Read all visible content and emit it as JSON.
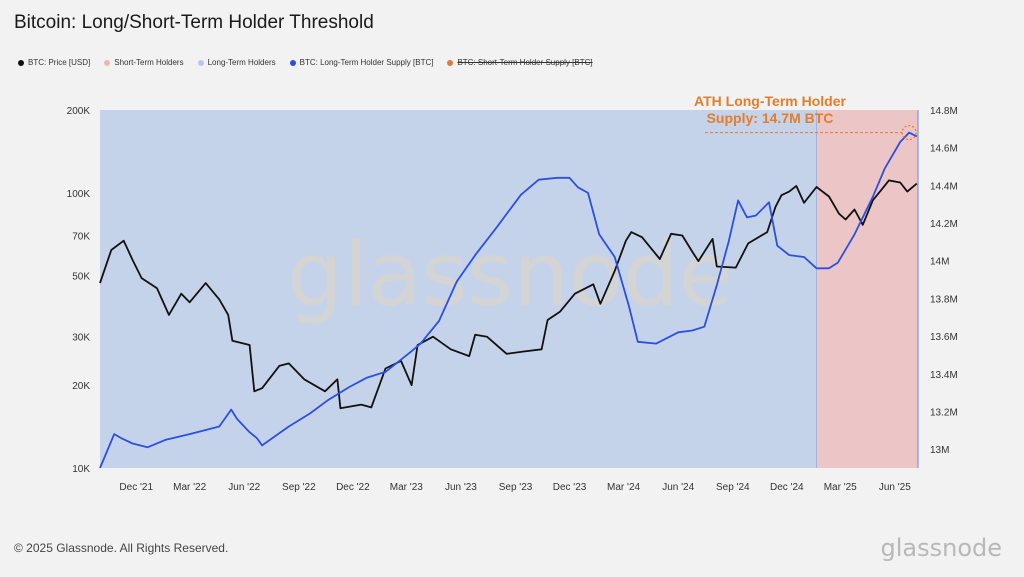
{
  "title": "Bitcoin: Long/Short-Term Holder Threshold",
  "legend": [
    {
      "label": "BTC: Price [USD]",
      "color": "#111111",
      "struck": false
    },
    {
      "label": "Short-Term Holders",
      "color": "#f0b6b6",
      "struck": false
    },
    {
      "label": "Long-Term Holders",
      "color": "#b7c9e8",
      "struck": false
    },
    {
      "label": "BTC: Long-Term Holder Supply [BTC]",
      "color": "#2b4fe0",
      "struck": false
    },
    {
      "label": "BTC: Short-Term Holder Supply [BTC]",
      "color": "#e07a3a",
      "struck": true
    }
  ],
  "annotation": {
    "line1": "ATH Long-Term Holder",
    "line2": "Supply: 14.7M BTC"
  },
  "watermark": "glassnode",
  "footer": "© 2025 Glassnode. All Rights Reserved.",
  "brand": "glassnode",
  "colors": {
    "price": "#111111",
    "lth_supply": "#2b4fe0",
    "lth_area": "#c5d3ea",
    "sth_area": "#ecc6c6",
    "annotation": "#e57c2a"
  },
  "chart_data": {
    "type": "line",
    "y_left_scale": "log",
    "y_left_lim": [
      10000,
      200000
    ],
    "y_left_ticks": [
      10000,
      20000,
      30000,
      50000,
      70000,
      100000,
      200000
    ],
    "y_left_tick_labels": [
      "10K",
      "20K",
      "30K",
      "50K",
      "70K",
      "100K",
      "200K"
    ],
    "y_right_lim": [
      12.9,
      14.8
    ],
    "y_right_ticks": [
      13.0,
      13.2,
      13.4,
      13.6,
      13.8,
      14.0,
      14.2,
      14.4,
      14.6,
      14.8
    ],
    "y_right_tick_labels": [
      "13M",
      "13.2M",
      "13.4M",
      "13.6M",
      "13.8M",
      "14M",
      "14.2M",
      "14.4M",
      "14.6M",
      "14.8M"
    ],
    "x_range": [
      "2021-10-01",
      "2025-07-10"
    ],
    "x_ticks": [
      {
        "date": "2021-12-01",
        "label": "Dec '21"
      },
      {
        "date": "2022-03-01",
        "label": "Mar '22"
      },
      {
        "date": "2022-06-01",
        "label": "Jun '22"
      },
      {
        "date": "2022-09-01",
        "label": "Sep '22"
      },
      {
        "date": "2022-12-01",
        "label": "Dec '22"
      },
      {
        "date": "2023-03-01",
        "label": "Mar '23"
      },
      {
        "date": "2023-06-01",
        "label": "Jun '23"
      },
      {
        "date": "2023-09-01",
        "label": "Sep '23"
      },
      {
        "date": "2023-12-01",
        "label": "Dec '23"
      },
      {
        "date": "2024-03-01",
        "label": "Mar '24"
      },
      {
        "date": "2024-06-01",
        "label": "Jun '24"
      },
      {
        "date": "2024-09-01",
        "label": "Sep '24"
      },
      {
        "date": "2024-12-01",
        "label": "Dec '24"
      },
      {
        "date": "2025-03-01",
        "label": "Mar '25"
      },
      {
        "date": "2025-06-01",
        "label": "Jun '25"
      }
    ],
    "regime_change_date": "2025-01-20",
    "series": [
      {
        "name": "BTC: Price [USD]",
        "axis": "left",
        "points": [
          [
            "2021-10-01",
            47000
          ],
          [
            "2021-10-20",
            62000
          ],
          [
            "2021-11-10",
            67000
          ],
          [
            "2021-11-25",
            57000
          ],
          [
            "2021-12-10",
            49000
          ],
          [
            "2022-01-05",
            45000
          ],
          [
            "2022-01-25",
            36000
          ],
          [
            "2022-02-15",
            43000
          ],
          [
            "2022-03-01",
            40000
          ],
          [
            "2022-03-28",
            47000
          ],
          [
            "2022-04-20",
            41000
          ],
          [
            "2022-05-05",
            36000
          ],
          [
            "2022-05-12",
            29000
          ],
          [
            "2022-06-10",
            28000
          ],
          [
            "2022-06-18",
            19000
          ],
          [
            "2022-07-01",
            19500
          ],
          [
            "2022-07-30",
            23500
          ],
          [
            "2022-08-15",
            24000
          ],
          [
            "2022-09-10",
            21000
          ],
          [
            "2022-10-15",
            19000
          ],
          [
            "2022-11-05",
            21000
          ],
          [
            "2022-11-10",
            16500
          ],
          [
            "2022-12-15",
            17000
          ],
          [
            "2023-01-01",
            16600
          ],
          [
            "2023-01-25",
            23000
          ],
          [
            "2023-02-20",
            24500
          ],
          [
            "2023-03-10",
            20000
          ],
          [
            "2023-03-20",
            28000
          ],
          [
            "2023-04-15",
            30000
          ],
          [
            "2023-05-15",
            27000
          ],
          [
            "2023-06-15",
            25500
          ],
          [
            "2023-06-25",
            30500
          ],
          [
            "2023-07-15",
            30000
          ],
          [
            "2023-08-17",
            26000
          ],
          [
            "2023-09-15",
            26500
          ],
          [
            "2023-10-15",
            27000
          ],
          [
            "2023-10-25",
            34500
          ],
          [
            "2023-11-15",
            37000
          ],
          [
            "2023-12-10",
            43000
          ],
          [
            "2024-01-10",
            46500
          ],
          [
            "2024-01-22",
            39500
          ],
          [
            "2024-02-15",
            52000
          ],
          [
            "2024-03-05",
            67000
          ],
          [
            "2024-03-14",
            72000
          ],
          [
            "2024-04-01",
            69000
          ],
          [
            "2024-05-01",
            57500
          ],
          [
            "2024-05-20",
            71000
          ],
          [
            "2024-06-08",
            70000
          ],
          [
            "2024-06-25",
            61000
          ],
          [
            "2024-07-05",
            56500
          ],
          [
            "2024-07-29",
            68000
          ],
          [
            "2024-08-05",
            54000
          ],
          [
            "2024-09-06",
            53500
          ],
          [
            "2024-09-27",
            65500
          ],
          [
            "2024-10-29",
            72000
          ],
          [
            "2024-11-12",
            89000
          ],
          [
            "2024-11-22",
            98000
          ],
          [
            "2024-12-05",
            101000
          ],
          [
            "2024-12-17",
            106000
          ],
          [
            "2024-12-30",
            92000
          ],
          [
            "2025-01-20",
            105000
          ],
          [
            "2025-02-10",
            97000
          ],
          [
            "2025-02-27",
            84000
          ],
          [
            "2025-03-10",
            80000
          ],
          [
            "2025-03-25",
            87000
          ],
          [
            "2025-04-08",
            76500
          ],
          [
            "2025-04-25",
            94000
          ],
          [
            "2025-05-10",
            103000
          ],
          [
            "2025-05-22",
            111000
          ],
          [
            "2025-06-10",
            109000
          ],
          [
            "2025-06-22",
            101000
          ],
          [
            "2025-07-08",
            108000
          ]
        ]
      },
      {
        "name": "BTC: Long-Term Holder Supply [BTC]",
        "axis": "right",
        "points": [
          [
            "2021-10-01",
            12.9
          ],
          [
            "2021-10-25",
            13.08
          ],
          [
            "2021-11-05",
            13.06
          ],
          [
            "2021-11-25",
            13.03
          ],
          [
            "2021-12-20",
            13.01
          ],
          [
            "2022-01-20",
            13.05
          ],
          [
            "2022-03-01",
            13.08
          ],
          [
            "2022-04-20",
            13.12
          ],
          [
            "2022-05-10",
            13.21
          ],
          [
            "2022-05-20",
            13.16
          ],
          [
            "2022-06-10",
            13.09
          ],
          [
            "2022-06-22",
            13.06
          ],
          [
            "2022-07-01",
            13.02
          ],
          [
            "2022-08-15",
            13.12
          ],
          [
            "2022-09-20",
            13.19
          ],
          [
            "2022-10-20",
            13.26
          ],
          [
            "2022-11-25",
            13.33
          ],
          [
            "2022-12-25",
            13.38
          ],
          [
            "2023-01-25",
            13.41
          ],
          [
            "2023-03-10",
            13.52
          ],
          [
            "2023-03-25",
            13.56
          ],
          [
            "2023-04-25",
            13.68
          ],
          [
            "2023-05-25",
            13.89
          ],
          [
            "2023-06-25",
            14.03
          ],
          [
            "2023-08-01",
            14.18
          ],
          [
            "2023-09-10",
            14.35
          ],
          [
            "2023-10-10",
            14.43
          ],
          [
            "2023-11-10",
            14.44
          ],
          [
            "2023-12-01",
            14.44
          ],
          [
            "2023-12-15",
            14.39
          ],
          [
            "2024-01-01",
            14.36
          ],
          [
            "2024-01-20",
            14.14
          ],
          [
            "2024-02-15",
            14.02
          ],
          [
            "2024-03-10",
            13.76
          ],
          [
            "2024-03-25",
            13.57
          ],
          [
            "2024-04-25",
            13.56
          ],
          [
            "2024-06-01",
            13.62
          ],
          [
            "2024-06-25",
            13.63
          ],
          [
            "2024-07-15",
            13.65
          ],
          [
            "2024-08-05",
            13.87
          ],
          [
            "2024-08-25",
            14.1
          ],
          [
            "2024-09-10",
            14.32
          ],
          [
            "2024-09-25",
            14.23
          ],
          [
            "2024-10-10",
            14.24
          ],
          [
            "2024-11-01",
            14.31
          ],
          [
            "2024-11-15",
            14.08
          ],
          [
            "2024-12-05",
            14.03
          ],
          [
            "2024-12-30",
            14.02
          ],
          [
            "2025-01-20",
            13.96
          ],
          [
            "2025-02-10",
            13.96
          ],
          [
            "2025-02-25",
            13.99
          ],
          [
            "2025-03-25",
            14.14
          ],
          [
            "2025-04-25",
            14.34
          ],
          [
            "2025-05-15",
            14.49
          ],
          [
            "2025-06-10",
            14.63
          ],
          [
            "2025-06-25",
            14.68
          ],
          [
            "2025-07-08",
            14.66
          ]
        ]
      }
    ]
  }
}
